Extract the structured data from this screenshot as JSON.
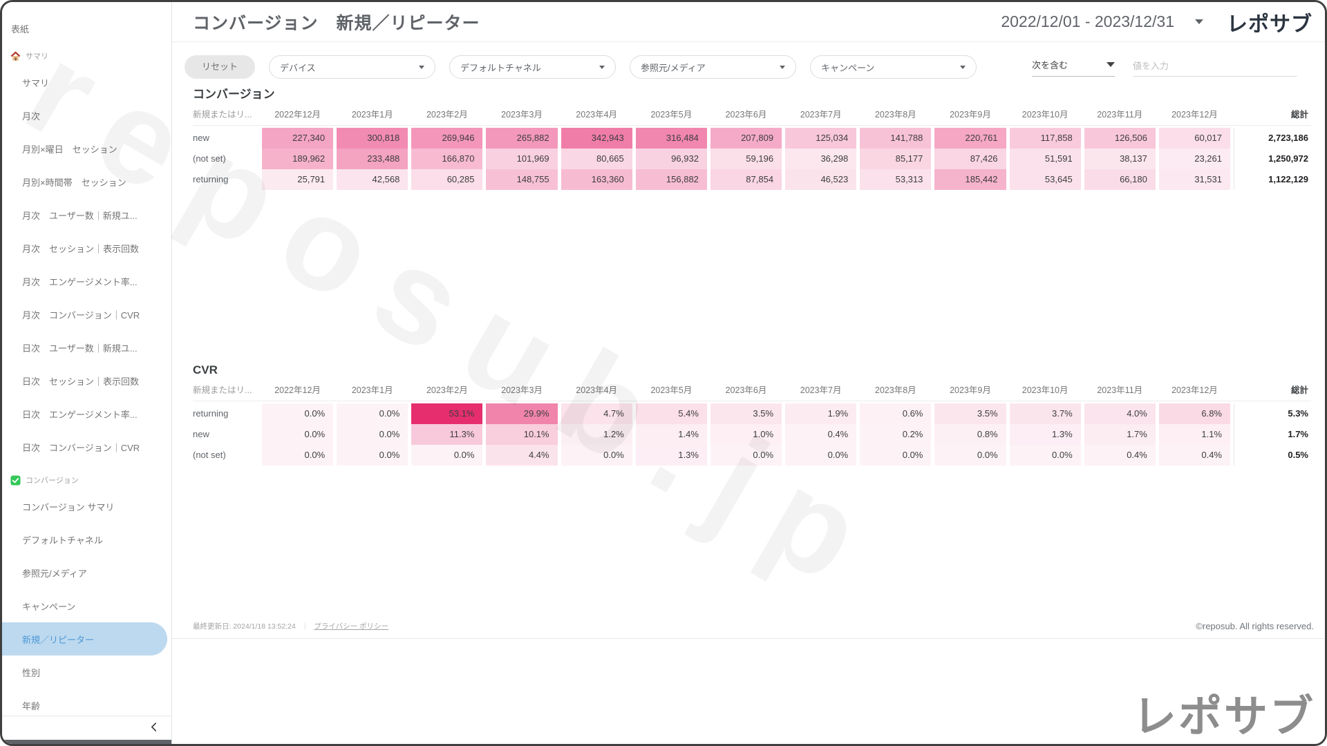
{
  "watermark": "reposub.jp",
  "sidebar": {
    "cover_label": "表紙",
    "sections": [
      {
        "icon": "home-icon",
        "label": "サマリ",
        "items": [
          "サマリ",
          "月次",
          "月別×曜日　セッション",
          "月別×時間帯　セッション",
          "月次　ユーザー数｜新規ユ...",
          "月次　セッション｜表示回数",
          "月次　エンゲージメント率...",
          "月次　コンバージョン｜CVR",
          "日次　ユーザー数｜新規ユ...",
          "日次　セッション｜表示回数",
          "日次　エンゲージメント率...",
          "日次　コンバージョン｜CVR"
        ]
      },
      {
        "icon": "check-icon",
        "label": "コンバージョン",
        "items": [
          "コンバージョン サマリ",
          "デフォルトチャネル",
          "参照元/メディア",
          "キャンペーン",
          "新規／リピーター",
          "性別",
          "年齢"
        ],
        "selected": "新規／リピーター"
      }
    ]
  },
  "header": {
    "title": "コンバージョン　新規／リピーター",
    "date_range": "2022/12/01 - 2023/12/31",
    "logo": "レポサブ"
  },
  "filters": {
    "reset_label": "リセット",
    "dropdowns": [
      "デバイス",
      "デフォルトチャネル",
      "参照元/メディア",
      "キャンペーン"
    ],
    "match_type": "次を含む",
    "input_placeholder": "値を入力"
  },
  "chart_data": [
    {
      "type": "heatmap-table",
      "title": "コンバージョン",
      "row_dimension_header": "新規またはリ...",
      "columns": [
        "2022年12月",
        "2023年1月",
        "2023年2月",
        "2023年3月",
        "2023年4月",
        "2023年5月",
        "2023年6月",
        "2023年7月",
        "2023年8月",
        "2023年9月",
        "2023年10月",
        "2023年11月",
        "2023年12月"
      ],
      "total_label": "総計",
      "value_format": "number",
      "heat_low": "#fdf3f7",
      "heat_high": "#f07da8",
      "rows": [
        {
          "label": "new",
          "values": [
            227340,
            300818,
            269946,
            265882,
            342943,
            316484,
            207809,
            125034,
            141788,
            220761,
            117858,
            126506,
            60017
          ],
          "total": 2723186
        },
        {
          "label": "(not set)",
          "values": [
            189962,
            233488,
            166870,
            101969,
            80665,
            96932,
            59196,
            36298,
            85177,
            87426,
            51591,
            38137,
            23261
          ],
          "total": 1250972
        },
        {
          "label": "returning",
          "values": [
            25791,
            42568,
            60285,
            148755,
            163360,
            156882,
            87854,
            46523,
            53313,
            185442,
            53645,
            66180,
            31531
          ],
          "total": 1122129
        }
      ]
    },
    {
      "type": "heatmap-table",
      "title": "CVR",
      "row_dimension_header": "新規またはリ...",
      "columns": [
        "2022年12月",
        "2023年1月",
        "2023年2月",
        "2023年3月",
        "2023年4月",
        "2023年5月",
        "2023年6月",
        "2023年7月",
        "2023年8月",
        "2023年9月",
        "2023年10月",
        "2023年11月",
        "2023年12月"
      ],
      "total_label": "総計",
      "value_format": "percent",
      "heat_low": "#fdf3f7",
      "heat_high": "#e62e6e",
      "rows": [
        {
          "label": "returning",
          "values": [
            0.0,
            0.0,
            53.1,
            29.9,
            4.7,
            5.4,
            3.5,
            1.9,
            0.6,
            3.5,
            3.7,
            4.0,
            6.8
          ],
          "total": 5.3
        },
        {
          "label": "new",
          "values": [
            0.0,
            0.0,
            11.3,
            10.1,
            1.2,
            1.4,
            1.0,
            0.4,
            0.2,
            0.8,
            1.3,
            1.7,
            1.1
          ],
          "total": 1.7
        },
        {
          "label": "(not set)",
          "values": [
            0.0,
            0.0,
            0.0,
            4.4,
            0.0,
            1.3,
            0.0,
            0.0,
            0.0,
            0.0,
            0.0,
            0.4,
            0.4
          ],
          "total": 0.5
        }
      ]
    }
  ],
  "footer": {
    "last_updated": "最終更新日: 2024/1/18 13:52:24",
    "separator": "｜",
    "privacy_link": "プライバシー ポリシー",
    "copyright": "©reposub. All rights reserved.",
    "brand": "レポサブ"
  }
}
